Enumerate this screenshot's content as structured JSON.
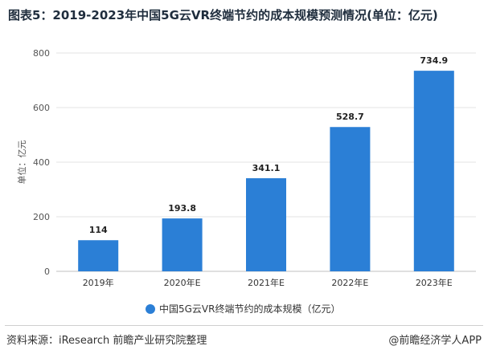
{
  "title": "图表5：2019-2023年中国5G云VR终端节约的成本规模预测情况(单位：亿元)",
  "chart_data": {
    "type": "bar",
    "categories": [
      "2019年",
      "2020年E",
      "2021年E",
      "2022年E",
      "2023年E"
    ],
    "series": [
      {
        "name": "中国5G云VR终端节约的成本规模（亿元）",
        "values": [
          114,
          193.8,
          341.1,
          528.7,
          734.9
        ]
      }
    ],
    "value_labels": [
      "114",
      "193.8",
      "341.1",
      "528.7",
      "734.9"
    ],
    "ylabel": "单位：亿元",
    "ylim": [
      0,
      800
    ],
    "yticks": [
      0,
      200,
      400,
      600,
      800
    ],
    "grid": true,
    "legend_position": "bottom",
    "colors": {
      "bar": "#2b7fd6",
      "grid": "#e3e3e3",
      "axis": "#bfbfbf"
    }
  },
  "footer": {
    "source": "资料来源：iResearch 前瞻产业研究院整理",
    "credit": "@前瞻经济学人APP"
  }
}
